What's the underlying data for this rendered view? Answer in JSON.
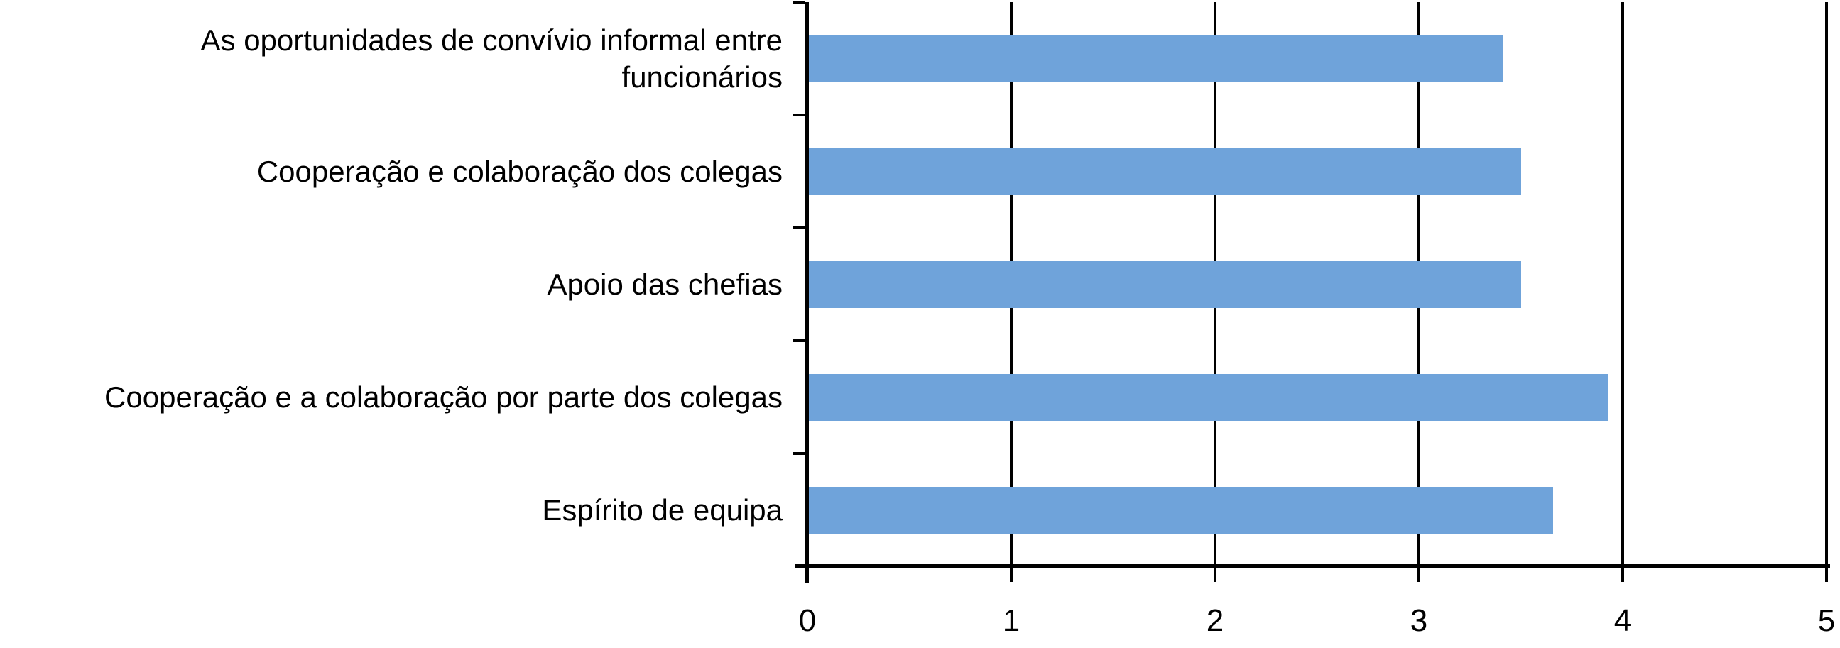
{
  "chart_data": {
    "type": "bar",
    "orientation": "horizontal",
    "title": "",
    "xlabel": "",
    "ylabel": "",
    "categories": [
      "As oportunidades de convívio informal entre\nfuncionários",
      "Cooperação e colaboração dos colegas",
      "Apoio das chefias",
      "Cooperação e a colaboração por parte dos colegas",
      "Espírito de equipa"
    ],
    "values": [
      3.41,
      3.5,
      3.5,
      3.93,
      3.66
    ],
    "x_ticks": [
      "0",
      "1",
      "2",
      "3",
      "4",
      "5"
    ],
    "xlim": [
      0,
      5
    ],
    "grid": true,
    "gridline_values": [
      1,
      2,
      3,
      4,
      5
    ],
    "legend_position": "none",
    "bar_color": "#6FA3DA",
    "axis_color": "#000000",
    "text_color": "#000000",
    "background_color": "#FFFFFF"
  }
}
